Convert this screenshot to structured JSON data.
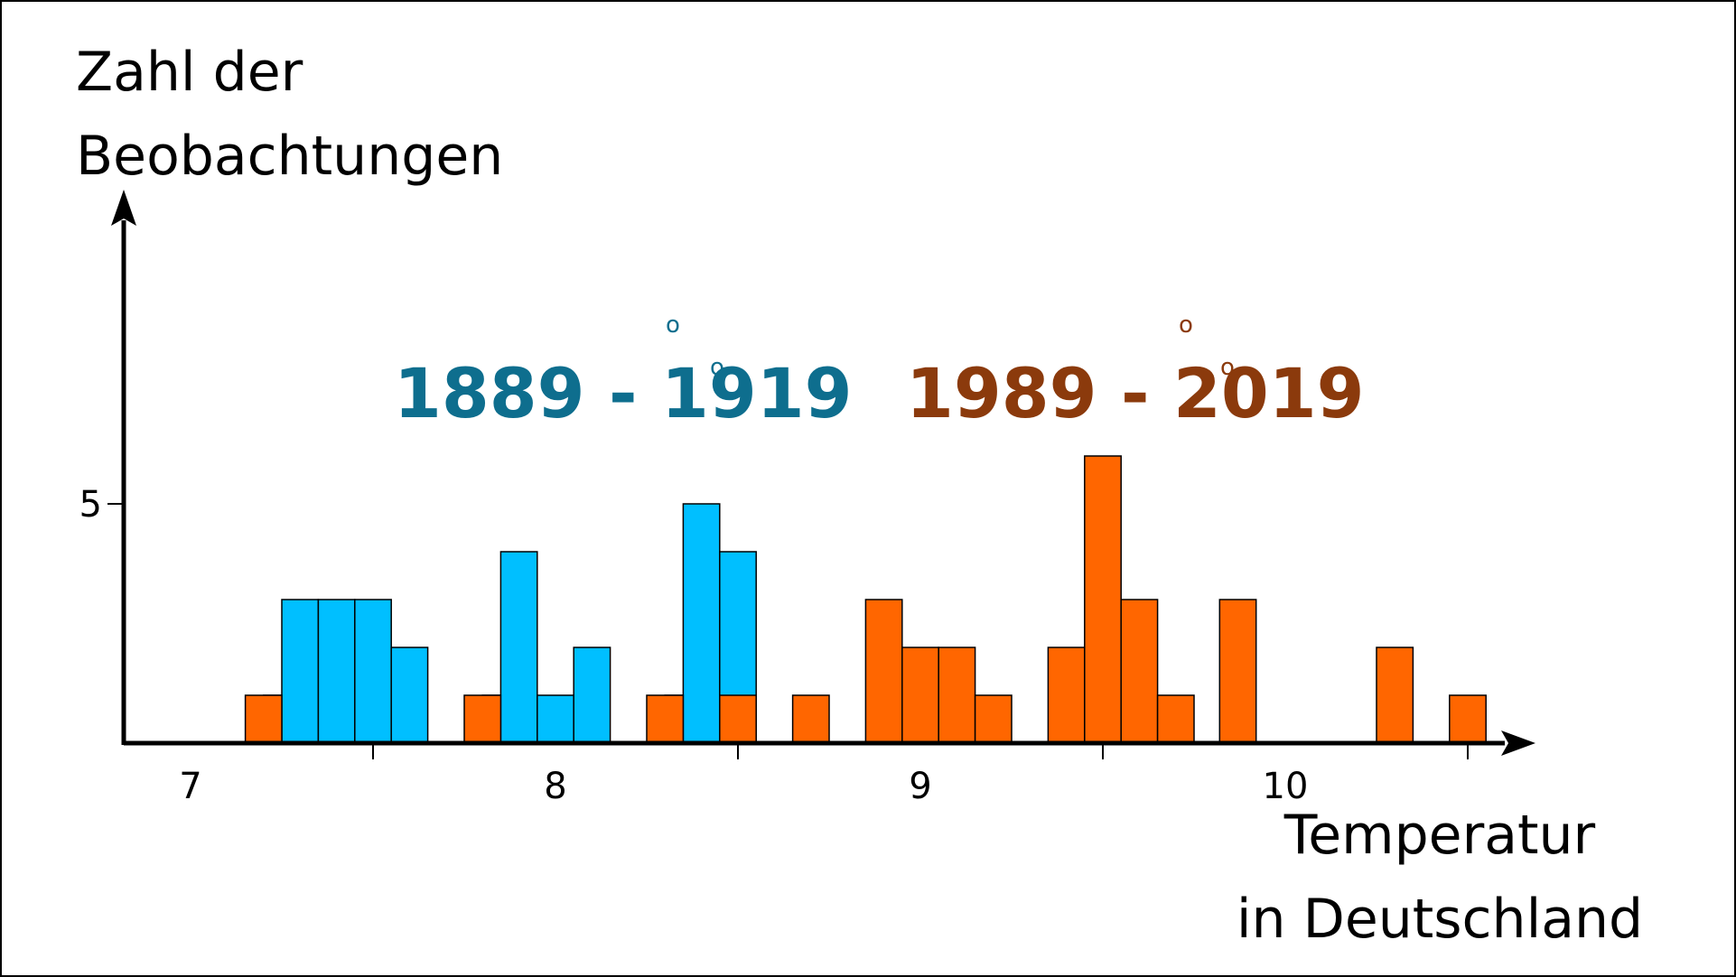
{
  "chart_data": {
    "type": "bar",
    "ylabel_lines": [
      "Zahl der",
      "Beobachtungen"
    ],
    "xlabel_lines": [
      "Temperatur",
      "in Deutschland"
    ],
    "x_ticks": [
      7,
      8,
      9,
      10
    ],
    "y_ticks": [
      5
    ],
    "xlim": [
      6.82,
      10.7
    ],
    "ylim": [
      0,
      9.5
    ],
    "bin_width": 0.1,
    "annotations": [
      {
        "text": "1889 - 1919",
        "degree_mark": "o",
        "color": "#0e6e8e",
        "series": "1889 - 1919"
      },
      {
        "text": "1989 - 2019",
        "degree_mark": "o",
        "color": "#8b3a0c",
        "series": "1989 - 2019"
      }
    ],
    "series": [
      {
        "name": "1889 - 1919",
        "color": "#00bfff",
        "bins": [
          {
            "x0": 7.2,
            "count": 1
          },
          {
            "x0": 7.25,
            "count": 3
          },
          {
            "x0": 7.35,
            "count": 3
          },
          {
            "x0": 7.45,
            "count": 3
          },
          {
            "x0": 7.55,
            "count": 2
          },
          {
            "x0": 7.8,
            "count": 1
          },
          {
            "x0": 7.85,
            "count": 4
          },
          {
            "x0": 7.95,
            "count": 1
          },
          {
            "x0": 8.05,
            "count": 2
          },
          {
            "x0": 8.3,
            "count": 1
          },
          {
            "x0": 8.35,
            "count": 5
          },
          {
            "x0": 8.45,
            "count": 4
          }
        ]
      },
      {
        "name": "1989 - 2019",
        "color": "#ff6600",
        "bins": [
          {
            "x0": 7.15,
            "count": 1
          },
          {
            "x0": 7.75,
            "count": 1
          },
          {
            "x0": 8.25,
            "count": 1
          },
          {
            "x0": 8.45,
            "count": 1
          },
          {
            "x0": 8.65,
            "count": 1
          },
          {
            "x0": 8.85,
            "count": 3
          },
          {
            "x0": 8.95,
            "count": 2
          },
          {
            "x0": 9.05,
            "count": 2
          },
          {
            "x0": 9.15,
            "count": 1
          },
          {
            "x0": 9.35,
            "count": 2
          },
          {
            "x0": 9.45,
            "count": 6
          },
          {
            "x0": 9.55,
            "count": 3
          },
          {
            "x0": 9.65,
            "count": 1
          },
          {
            "x0": 9.82,
            "count": 3
          },
          {
            "x0": 10.25,
            "count": 2
          },
          {
            "x0": 10.45,
            "count": 1
          }
        ]
      }
    ]
  }
}
